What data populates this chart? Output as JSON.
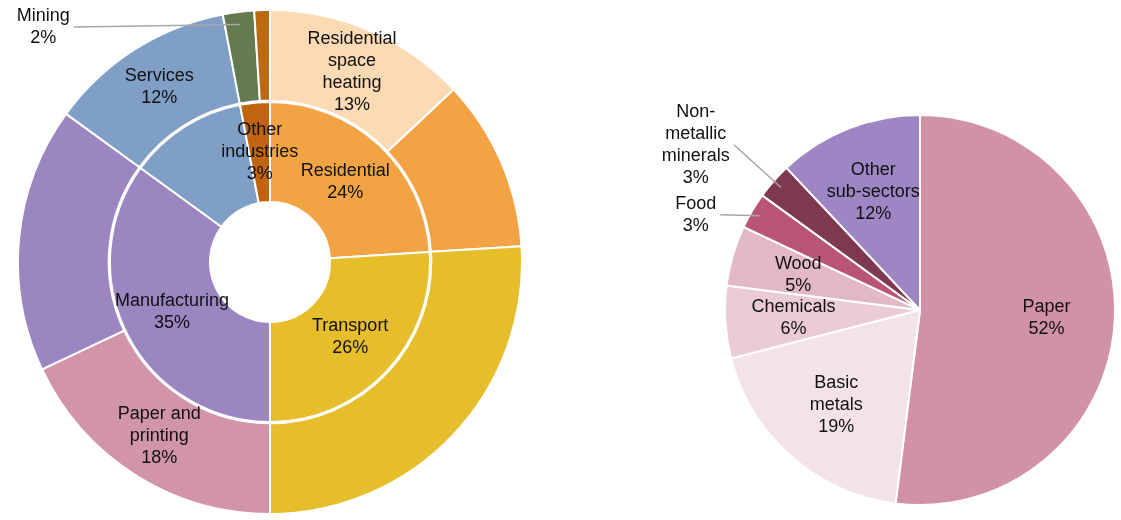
{
  "chart_data": [
    {
      "type": "donut",
      "categories": [
        "Residential space heating",
        null,
        null,
        "Paper and printing",
        null,
        "Services",
        "Mining",
        null
      ],
      "values": [
        13,
        11,
        26,
        18,
        17,
        12,
        2,
        1
      ],
      "colors": [
        "#fbdab4",
        "#f2a444",
        "#e6bd2a",
        "#d294a8",
        "#9b86c2",
        "#7f9fc6",
        "#637b4f",
        "#bb6a14"
      ],
      "value_labels": [
        "13%",
        null,
        null,
        "18%",
        null,
        "12%",
        "2%",
        null
      ]
    },
    {
      "type": "donut",
      "categories": [
        "Residential",
        "Transport",
        "Manufacturing",
        null,
        "Other industries"
      ],
      "values": [
        24,
        26,
        35,
        12,
        3
      ],
      "colors": [
        "#f2a444",
        "#e6bd2a",
        "#9b86c2",
        "#7f9fc6",
        "#c0640f"
      ],
      "value_labels": [
        "24%",
        "26%",
        "35%",
        null,
        "3%"
      ]
    },
    {
      "type": "pie",
      "categories": [
        "Paper",
        "Basic metals",
        "Chemicals",
        "Wood",
        "Food",
        "Non- metallic minerals",
        "Other sub-sectors"
      ],
      "values": [
        52,
        19,
        6,
        5,
        3,
        3,
        12
      ],
      "colors": [
        "#d191a6",
        "#f3e3e8",
        "#ebccd6",
        "#e2b7c6",
        "#b85476",
        "#7e3852",
        "#9d86c3"
      ],
      "value_labels": [
        "52%",
        "19%",
        "6%",
        "5%",
        "3%",
        "3%",
        "12%"
      ]
    }
  ]
}
